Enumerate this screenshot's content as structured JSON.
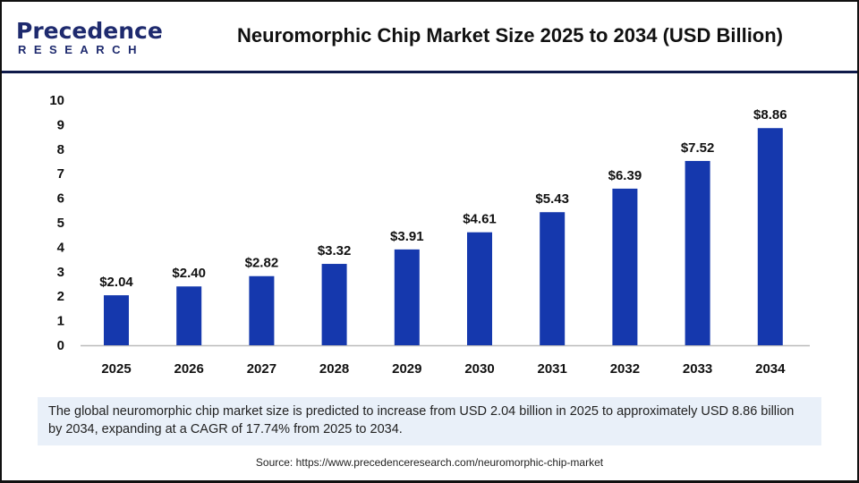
{
  "logo": {
    "line1": "Precedence",
    "line2": "RESEARCH"
  },
  "title": "Neuromorphic Chip Market Size 2025 to 2034 (USD Billion)",
  "chart_data": {
    "type": "bar",
    "title": "Neuromorphic Chip Market Size 2025 to 2034 (USD Billion)",
    "categories": [
      "2025",
      "2026",
      "2027",
      "2028",
      "2029",
      "2030",
      "2031",
      "2032",
      "2033",
      "2034"
    ],
    "values": [
      2.04,
      2.4,
      2.82,
      3.32,
      3.91,
      4.61,
      5.43,
      6.39,
      7.52,
      8.86
    ],
    "data_labels": [
      "$2.04",
      "$2.40",
      "$2.82",
      "$3.32",
      "$3.91",
      "$4.61",
      "$5.43",
      "$6.39",
      "$7.52",
      "$8.86"
    ],
    "ylim": [
      0,
      10
    ],
    "yticks": [
      "0",
      "1",
      "2",
      "3",
      "4",
      "5",
      "6",
      "7",
      "8",
      "9",
      "10"
    ],
    "grid": false,
    "bar_color": "#1538ad"
  },
  "info": "The global neuromorphic chip market size is predicted to increase from USD 2.04 billion in 2025 to approximately USD 8.86 billion by 2034, expanding at a CAGR of 17.74% from 2025 to 2034.",
  "source": "Source: https://www.precedenceresearch.com/neuromorphic-chip-market"
}
